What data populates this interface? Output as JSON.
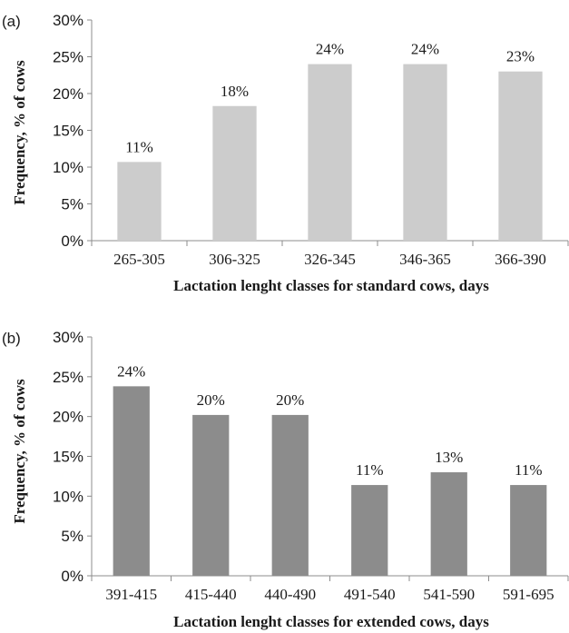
{
  "chart_data": [
    {
      "type": "bar",
      "panel_label": "(a)",
      "categories": [
        "265-305",
        "306-325",
        "326-345",
        "346-365",
        "366-390"
      ],
      "values": [
        11,
        18,
        24,
        24,
        23
      ],
      "actual_heights": [
        10.7,
        18.3,
        24.0,
        24.0,
        23.0
      ],
      "data_labels": [
        "11%",
        "18%",
        "24%",
        "24%",
        "23%"
      ],
      "ylabel": "Frequency, % of cows",
      "xlabel": "Lactation lenght classes for standard cows, days",
      "ylim": [
        0,
        30
      ],
      "yticks": [
        "0%",
        "5%",
        "10%",
        "15%",
        "20%",
        "25%",
        "30%"
      ],
      "bar_color": "#cccccc",
      "grid": false
    },
    {
      "type": "bar",
      "panel_label": "(b)",
      "categories": [
        "391-415",
        "415-440",
        "440-490",
        "491-540",
        "541-590",
        "591-695"
      ],
      "values": [
        24,
        20,
        20,
        11,
        13,
        11
      ],
      "actual_heights": [
        23.8,
        20.2,
        20.2,
        11.4,
        13.0,
        11.4
      ],
      "data_labels": [
        "24%",
        "20%",
        "20%",
        "11%",
        "13%",
        "11%"
      ],
      "ylabel": "Frequency, % of cows",
      "xlabel": "Lactation lenght classes for extended  cows, days",
      "ylim": [
        0,
        30
      ],
      "yticks": [
        "0%",
        "5%",
        "10%",
        "15%",
        "20%",
        "25%",
        "30%"
      ],
      "bar_color": "#8c8c8c",
      "grid": false
    }
  ]
}
